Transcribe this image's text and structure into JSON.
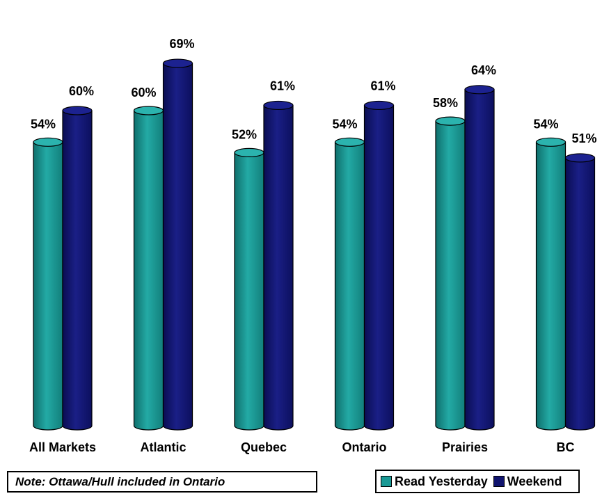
{
  "chart_data": {
    "type": "bar",
    "categories": [
      "All Markets",
      "Atlantic",
      "Quebec",
      "Ontario",
      "Prairies",
      "BC"
    ],
    "series": [
      {
        "name": "Read Yesterday",
        "color": "#1a9a96",
        "values": [
          54,
          60,
          52,
          54,
          58,
          54
        ],
        "labels": [
          "54%",
          "60%",
          "52%",
          "54%",
          "58%",
          "54%"
        ]
      },
      {
        "name": "Weekend",
        "color": "#10146e",
        "values": [
          60,
          69,
          61,
          61,
          64,
          51
        ],
        "labels": [
          "60%",
          "69%",
          "61%",
          "61%",
          "64%",
          "51%"
        ]
      }
    ],
    "ylim": [
      0,
      100
    ],
    "grid": false,
    "legend_position": "bottom-right"
  },
  "note": "Note:  Ottawa/Hull included in Ontario",
  "legend": {
    "read_yesterday": "Read Yesterday",
    "weekend": "Weekend"
  }
}
